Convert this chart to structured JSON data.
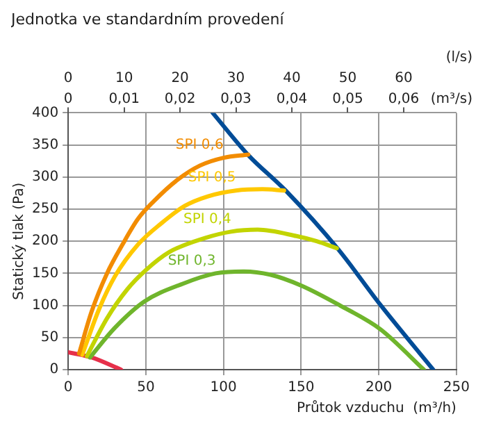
{
  "chart_data": {
    "type": "line",
    "title": "Jednotka ve standardním provedení",
    "xlabel": "Průtok vzduchu  (m³/h)",
    "ylabel": "Statický tlak (Pa)",
    "x2label": "(l/s)",
    "annotations": [
      "0",
      "0,01",
      "0,02",
      "0,03",
      "0,04",
      "0,05",
      "0,06",
      "(m³/s)"
    ],
    "xlim": [
      0,
      250
    ],
    "xticks": [
      0,
      50,
      100,
      150,
      200,
      250
    ],
    "x2lim": [
      0,
      69.44
    ],
    "x2ticks": [
      0,
      10,
      20,
      30,
      40,
      50,
      60
    ],
    "ylim": [
      0,
      400
    ],
    "yticks": [
      0,
      50,
      100,
      150,
      200,
      250,
      300,
      350,
      400
    ],
    "grid": true,
    "legend": false,
    "marker": "none",
    "line_style": "solid",
    "series": [
      {
        "name": "SPI 0,6",
        "color": "#f28c00",
        "x": [
          7,
          15,
          25,
          35,
          45,
          55,
          70,
          85,
          100,
          116
        ],
        "values": [
          25,
          90,
          150,
          195,
          235,
          262,
          295,
          318,
          330,
          335
        ]
      },
      {
        "name": "SPI 0,5",
        "color": "#ffc800",
        "x": [
          9,
          20,
          30,
          45,
          60,
          75,
          90,
          108,
          125,
          139
        ],
        "values": [
          23,
          95,
          145,
          195,
          228,
          255,
          270,
          279,
          281,
          279
        ]
      },
      {
        "name": "SPI 0,4",
        "color": "#c2d400",
        "x": [
          12,
          25,
          38,
          50,
          65,
          88,
          105,
          122,
          147,
          160,
          173
        ],
        "values": [
          21,
          80,
          125,
          155,
          183,
          205,
          215,
          218,
          208,
          200,
          189
        ]
      },
      {
        "name": "SPI 0,3",
        "color": "#6fb52c",
        "x": [
          14,
          30,
          49,
          74,
          95,
          113,
          130,
          150,
          175,
          201,
          229
        ],
        "values": [
          19,
          65,
          106,
          134,
          150,
          153,
          148,
          131,
          100,
          63,
          0
        ]
      },
      {
        "color": "#004c97",
        "x": [
          93,
          116,
          140,
          174,
          201,
          235
        ],
        "values": [
          400,
          334,
          279,
          187,
          101,
          0
        ]
      },
      {
        "color": "#e6304a",
        "x": [
          0,
          15,
          34
        ],
        "values": [
          27,
          19,
          0
        ]
      }
    ]
  }
}
